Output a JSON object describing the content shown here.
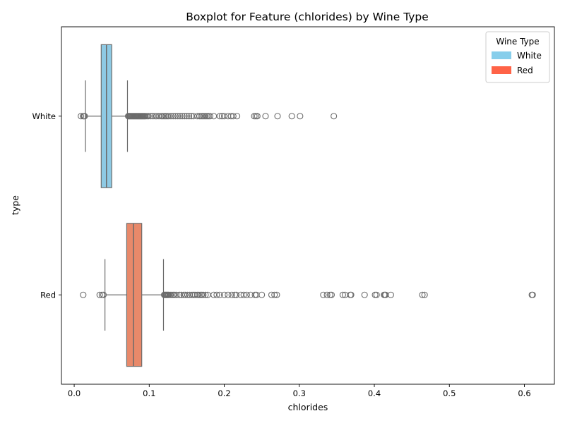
{
  "chart_data": {
    "type": "boxplot",
    "title": "Boxplot for Feature (chlorides) by Wine Type",
    "xlabel": "chlorides",
    "ylabel": "type",
    "xlim": [
      -0.017,
      0.64
    ],
    "x_ticks": [
      0.0,
      0.1,
      0.2,
      0.3,
      0.4,
      0.5,
      0.6
    ],
    "x_tick_labels": [
      "0.0",
      "0.1",
      "0.2",
      "0.3",
      "0.4",
      "0.5",
      "0.6"
    ],
    "orientation": "horizontal",
    "grid": false,
    "legend": {
      "title": "Wine Type",
      "placement": "top-right",
      "entries": [
        {
          "label": "White",
          "color": "#87ceeb"
        },
        {
          "label": "Red",
          "color": "#ff6347"
        }
      ]
    },
    "series": [
      {
        "name": "White",
        "color": "#87ceeb",
        "box_color": "#8ecae4",
        "whisker_low": 0.015,
        "q1": 0.036,
        "median": 0.043,
        "q3": 0.05,
        "whisker_high": 0.071,
        "outliers": [
          0.009,
          0.012,
          0.013,
          0.014,
          0.072,
          0.073,
          0.074,
          0.075,
          0.076,
          0.077,
          0.078,
          0.079,
          0.08,
          0.081,
          0.082,
          0.083,
          0.084,
          0.085,
          0.086,
          0.087,
          0.088,
          0.089,
          0.09,
          0.091,
          0.092,
          0.093,
          0.094,
          0.095,
          0.097,
          0.099,
          0.102,
          0.105,
          0.108,
          0.11,
          0.113,
          0.116,
          0.118,
          0.12,
          0.122,
          0.124,
          0.126,
          0.129,
          0.132,
          0.135,
          0.138,
          0.141,
          0.144,
          0.147,
          0.15,
          0.153,
          0.156,
          0.159,
          0.164,
          0.167,
          0.169,
          0.171,
          0.173,
          0.175,
          0.177,
          0.179,
          0.181,
          0.186,
          0.194,
          0.197,
          0.2,
          0.205,
          0.209,
          0.212,
          0.217,
          0.24,
          0.242,
          0.244,
          0.255,
          0.271,
          0.29,
          0.301,
          0.346
        ]
      },
      {
        "name": "Red",
        "color": "#ff6347",
        "box_color": "#e8896a",
        "whisker_low": 0.041,
        "q1": 0.07,
        "median": 0.079,
        "q3": 0.09,
        "whisker_high": 0.119,
        "outliers": [
          0.012,
          0.034,
          0.037,
          0.039,
          0.12,
          0.121,
          0.122,
          0.123,
          0.124,
          0.125,
          0.126,
          0.128,
          0.13,
          0.132,
          0.134,
          0.136,
          0.14,
          0.143,
          0.146,
          0.148,
          0.151,
          0.154,
          0.157,
          0.159,
          0.161,
          0.164,
          0.166,
          0.168,
          0.17,
          0.172,
          0.175,
          0.178,
          0.186,
          0.19,
          0.194,
          0.2,
          0.205,
          0.21,
          0.214,
          0.216,
          0.222,
          0.226,
          0.23,
          0.235,
          0.241,
          0.243,
          0.25,
          0.263,
          0.267,
          0.27,
          0.332,
          0.337,
          0.341,
          0.343,
          0.358,
          0.361,
          0.368,
          0.369,
          0.387,
          0.401,
          0.403,
          0.413,
          0.414,
          0.415,
          0.422,
          0.464,
          0.467,
          0.61,
          0.611
        ]
      }
    ]
  }
}
